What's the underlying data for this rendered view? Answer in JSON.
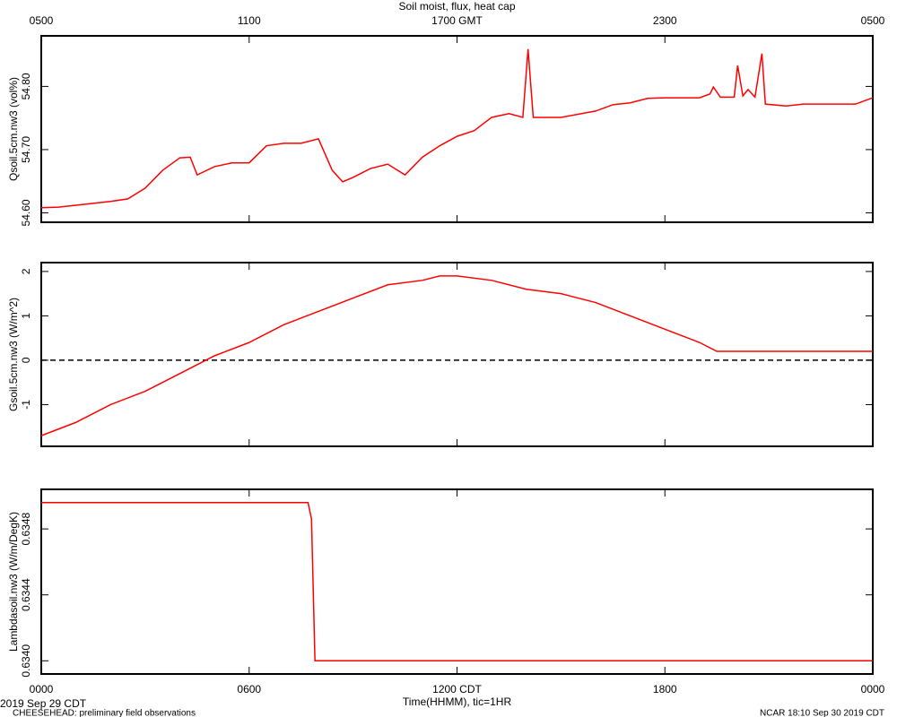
{
  "chart_data": [
    {
      "type": "line",
      "title": "Soil moist, flux, heat cap",
      "ylabel": "Qsoil.5cm.nw3 (vol%)",
      "xlim": [
        0,
        24
      ],
      "x2ticks": [
        {
          "value": 0,
          "label": "0500"
        },
        {
          "value": 6,
          "label": "1100"
        },
        {
          "value": 12,
          "label": "1700 GMT"
        },
        {
          "value": 18,
          "label": "2300"
        },
        {
          "value": 24,
          "label": "0500"
        }
      ],
      "ylim": [
        54.585,
        54.88
      ],
      "yticks": [
        {
          "value": 54.6,
          "label": "54.60"
        },
        {
          "value": 54.7,
          "label": "54.70"
        },
        {
          "value": 54.8,
          "label": "54.80"
        }
      ],
      "color": "#ff0000",
      "x": [
        0,
        0.5,
        1,
        1.5,
        2,
        2.5,
        3,
        3.5,
        4,
        4.3,
        4.5,
        5,
        5.5,
        6,
        6.5,
        7,
        7.5,
        8,
        8.4,
        8.7,
        9,
        9.5,
        10,
        10.5,
        11,
        11.5,
        12,
        12.5,
        13,
        13.5,
        13.9,
        14.05,
        14.2,
        15,
        16,
        16.5,
        17,
        17.5,
        18,
        19,
        19.3,
        19.4,
        19.6,
        20,
        20.1,
        20.25,
        20.4,
        20.6,
        20.8,
        20.9,
        21.5,
        22,
        23.5,
        24
      ],
      "values": [
        54.608,
        54.609,
        54.612,
        54.615,
        54.618,
        54.622,
        54.639,
        54.667,
        54.687,
        54.688,
        54.66,
        54.673,
        54.679,
        54.679,
        54.706,
        54.71,
        54.71,
        54.717,
        54.667,
        54.649,
        54.656,
        54.67,
        54.677,
        54.66,
        54.688,
        54.706,
        54.721,
        54.73,
        54.751,
        54.757,
        54.751,
        54.859,
        54.751,
        54.751,
        54.761,
        54.771,
        54.774,
        54.781,
        54.782,
        54.782,
        54.788,
        54.799,
        54.783,
        54.783,
        54.833,
        54.785,
        54.795,
        54.783,
        54.852,
        54.772,
        54.769,
        54.772,
        54.772,
        54.782
      ]
    },
    {
      "type": "line",
      "ylabel": "Gsoil.5cm.nw3 (W/m^2)",
      "xlim": [
        0,
        24
      ],
      "ylim": [
        -1.94,
        2.2
      ],
      "yticks": [
        -1,
        0,
        1,
        2
      ],
      "reference_line": 0,
      "color": "#ff0000",
      "x": [
        0,
        1,
        2,
        3,
        4,
        5,
        6,
        7,
        8,
        9,
        10,
        11,
        11.5,
        12,
        13,
        14,
        15,
        16,
        17,
        18,
        19,
        19.5,
        24
      ],
      "values": [
        -1.7,
        -1.4,
        -1.0,
        -0.7,
        -0.3,
        0.1,
        0.4,
        0.8,
        1.1,
        1.4,
        1.7,
        1.8,
        1.9,
        1.9,
        1.8,
        1.6,
        1.5,
        1.3,
        1.0,
        0.7,
        0.4,
        0.2,
        0.2
      ]
    },
    {
      "type": "line",
      "ylabel": "Lambdasoil.nw3 (W/m/DegK)",
      "xlabel": "Time(HHMM), tic=1HR",
      "xlim": [
        0,
        24
      ],
      "xticks": [
        {
          "value": 0,
          "label": "0000"
        },
        {
          "value": 6,
          "label": "0600"
        },
        {
          "value": 12,
          "label": "1200 CDT"
        },
        {
          "value": 18,
          "label": "1800"
        },
        {
          "value": 24,
          "label": "0000"
        }
      ],
      "ylim": [
        0.63392,
        0.63504
      ],
      "yticks": [
        {
          "value": 0.634,
          "label": "0.6340"
        },
        0.6344,
        0.6348
      ],
      "color": "#ff0000",
      "x": [
        0,
        7.7,
        7.8,
        7.9,
        24
      ],
      "values": [
        0.63496,
        0.63496,
        0.63486,
        0.634,
        0.634
      ]
    }
  ],
  "footer": {
    "date": "2019 Sep 29 CDT",
    "note": "CHEESEHEAD: preliminary field observations",
    "stamp": "NCAR 18:10 Sep 30 2019 CDT"
  }
}
